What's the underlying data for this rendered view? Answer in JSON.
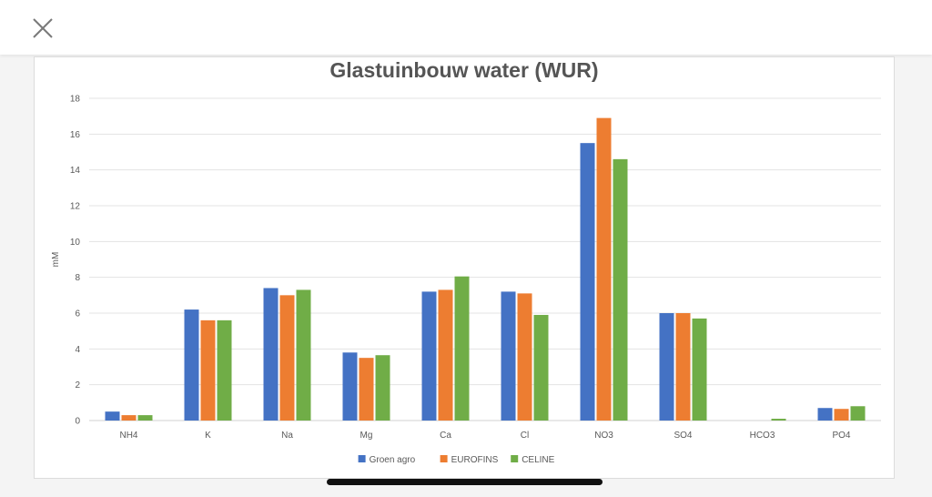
{
  "window": {
    "close_icon": "close-icon"
  },
  "chart_data": {
    "type": "bar",
    "title": "Glastuinbouw water (WUR)",
    "ylabel": "mM",
    "xlabel": "",
    "ylim": [
      0,
      18
    ],
    "yticks": [
      0,
      2,
      4,
      6,
      8,
      10,
      12,
      14,
      16,
      18
    ],
    "grid": true,
    "legend_position": "bottom",
    "categories": [
      "NH4",
      "K",
      "Na",
      "Mg",
      "Ca",
      "Cl",
      "NO3",
      "SO4",
      "HCO3",
      "PO4"
    ],
    "series": [
      {
        "name": "Groen agro",
        "color": "#4472c4",
        "values": [
          0.5,
          6.2,
          7.4,
          3.8,
          7.2,
          7.2,
          15.5,
          6.0,
          0,
          0.7
        ]
      },
      {
        "name": "EUROFINS",
        "color": "#ed7d31",
        "values": [
          0.3,
          5.6,
          7.0,
          3.5,
          7.3,
          7.1,
          16.9,
          6.0,
          0,
          0.65
        ]
      },
      {
        "name": "CELINE",
        "color": "#70ad47",
        "values": [
          0.3,
          5.6,
          7.3,
          3.65,
          8.05,
          5.9,
          14.6,
          5.7,
          0.1,
          0.8
        ]
      }
    ]
  }
}
